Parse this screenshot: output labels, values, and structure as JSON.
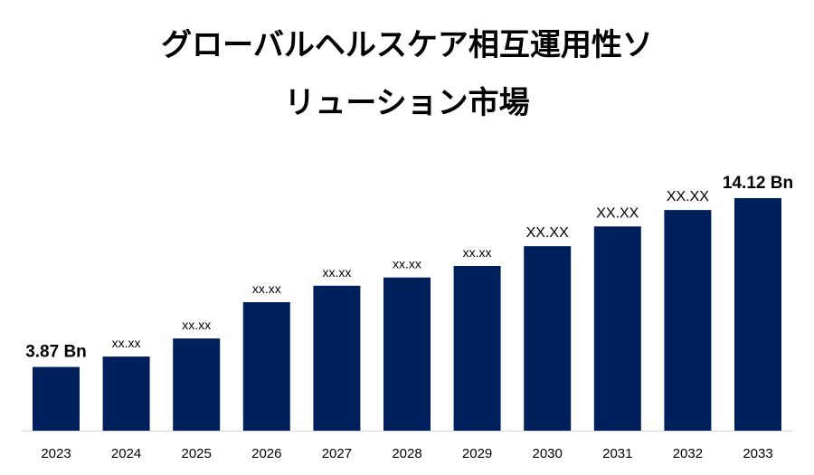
{
  "title_lines": [
    "グローバルヘルスケア相互運用性ソ",
    "リューション市場"
  ],
  "colors": {
    "bar": "#00205b",
    "baseline": "#d9d9d9",
    "text": "#000000"
  },
  "chart_data": {
    "type": "bar",
    "title": "グローバルヘルスケア相互運用性ソリューション市場",
    "categories": [
      "2023",
      "2024",
      "2025",
      "2026",
      "2027",
      "2028",
      "2029",
      "2030",
      "2031",
      "2032",
      "2033"
    ],
    "values": [
      3.87,
      4.5,
      5.6,
      7.8,
      8.8,
      9.3,
      10.0,
      11.2,
      12.4,
      13.4,
      14.12
    ],
    "data_labels": [
      "3.87 Bn",
      "xx.xx",
      "xx.xx",
      "xx.xx",
      "xx.xx",
      "xx.xx",
      "xx.xx",
      "XX.XX",
      "XX.XX",
      "XX.XX",
      "14.12 Bn"
    ],
    "xlabel": "",
    "ylabel": "",
    "ylim": [
      0,
      14.12
    ],
    "grid": false,
    "legend": "none"
  }
}
